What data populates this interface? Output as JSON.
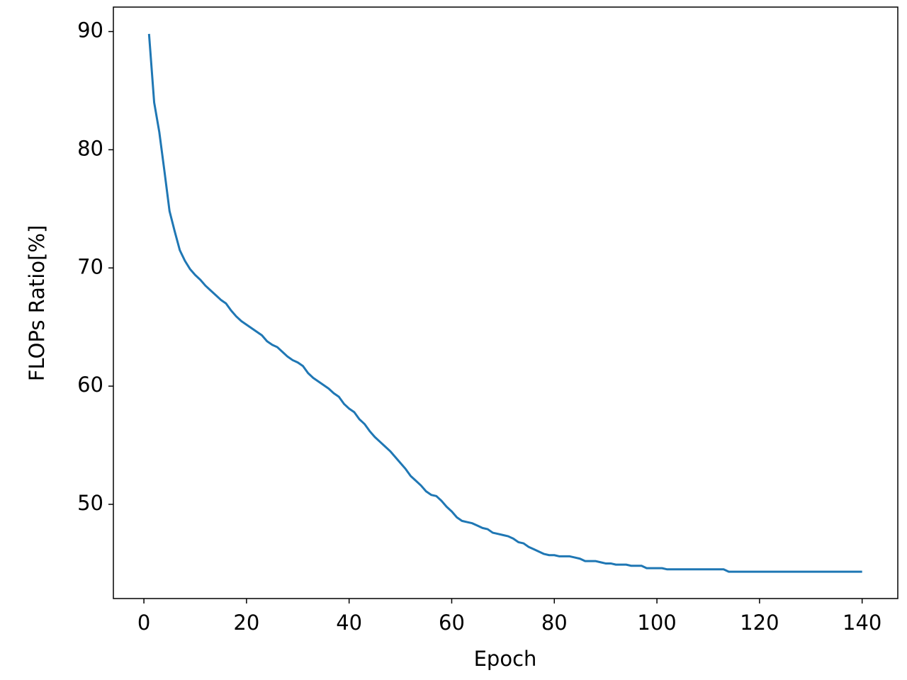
{
  "chart_data": {
    "type": "line",
    "x_label": "Epoch",
    "y_label": "FLOPs Ratio[%]",
    "x": [
      1,
      2,
      3,
      4,
      5,
      6,
      7,
      8,
      9,
      10,
      11,
      12,
      13,
      14,
      15,
      16,
      17,
      18,
      19,
      20,
      21,
      22,
      23,
      24,
      25,
      26,
      27,
      28,
      29,
      30,
      31,
      32,
      33,
      34,
      35,
      36,
      37,
      38,
      39,
      40,
      41,
      42,
      43,
      44,
      45,
      46,
      47,
      48,
      49,
      50,
      51,
      52,
      53,
      54,
      55,
      56,
      57,
      58,
      59,
      60,
      61,
      62,
      63,
      64,
      65,
      66,
      67,
      68,
      69,
      70,
      71,
      72,
      73,
      74,
      75,
      76,
      77,
      78,
      79,
      80,
      81,
      82,
      83,
      84,
      85,
      86,
      87,
      88,
      89,
      90,
      91,
      92,
      93,
      94,
      95,
      96,
      97,
      98,
      99,
      100,
      101,
      102,
      103,
      104,
      105,
      106,
      107,
      108,
      109,
      110,
      111,
      112,
      113,
      114,
      115,
      116,
      117,
      118,
      119,
      120,
      121,
      122,
      123,
      124,
      125,
      126,
      127,
      128,
      129,
      130,
      131,
      132,
      133,
      134,
      135,
      136,
      137,
      138,
      139,
      140
    ],
    "series": [
      {
        "name": "FLOPs Ratio",
        "color": "#1f77b4",
        "values": [
          89.8,
          84.0,
          81.5,
          78.2,
          74.8,
          73.1,
          71.5,
          70.6,
          69.9,
          69.4,
          69.0,
          68.5,
          68.1,
          67.7,
          67.3,
          67.0,
          66.4,
          65.9,
          65.5,
          65.2,
          64.9,
          64.6,
          64.3,
          63.8,
          63.5,
          63.3,
          62.9,
          62.5,
          62.2,
          62.0,
          61.7,
          61.1,
          60.7,
          60.4,
          60.1,
          59.8,
          59.4,
          59.1,
          58.5,
          58.1,
          57.8,
          57.2,
          56.8,
          56.2,
          55.7,
          55.3,
          54.9,
          54.5,
          54.0,
          53.5,
          53.0,
          52.4,
          52.0,
          51.6,
          51.1,
          50.8,
          50.7,
          50.3,
          49.8,
          49.4,
          48.9,
          48.6,
          48.5,
          48.4,
          48.2,
          48.0,
          47.9,
          47.6,
          47.5,
          47.4,
          47.3,
          47.1,
          46.8,
          46.7,
          46.4,
          46.2,
          46.0,
          45.8,
          45.7,
          45.7,
          45.6,
          45.6,
          45.6,
          45.5,
          45.4,
          45.2,
          45.2,
          45.2,
          45.1,
          45.0,
          45.0,
          44.9,
          44.9,
          44.9,
          44.8,
          44.8,
          44.8,
          44.6,
          44.6,
          44.6,
          44.6,
          44.5,
          44.5,
          44.5,
          44.5,
          44.5,
          44.5,
          44.5,
          44.5,
          44.5,
          44.5,
          44.5,
          44.5,
          44.3,
          44.3,
          44.3,
          44.3,
          44.3,
          44.3,
          44.3,
          44.3,
          44.3,
          44.3,
          44.3,
          44.3,
          44.3,
          44.3,
          44.3,
          44.3,
          44.3,
          44.3,
          44.3,
          44.3,
          44.3,
          44.3,
          44.3,
          44.3,
          44.3,
          44.3,
          44.3
        ]
      }
    ],
    "xlim": [
      -5.95,
      146.95
    ],
    "xticks": [
      0,
      20,
      40,
      60,
      80,
      100,
      120,
      140
    ],
    "ylim": [
      42.03,
      92.07
    ],
    "yticks": [
      50,
      60,
      70,
      80,
      90
    ],
    "grid": false
  }
}
